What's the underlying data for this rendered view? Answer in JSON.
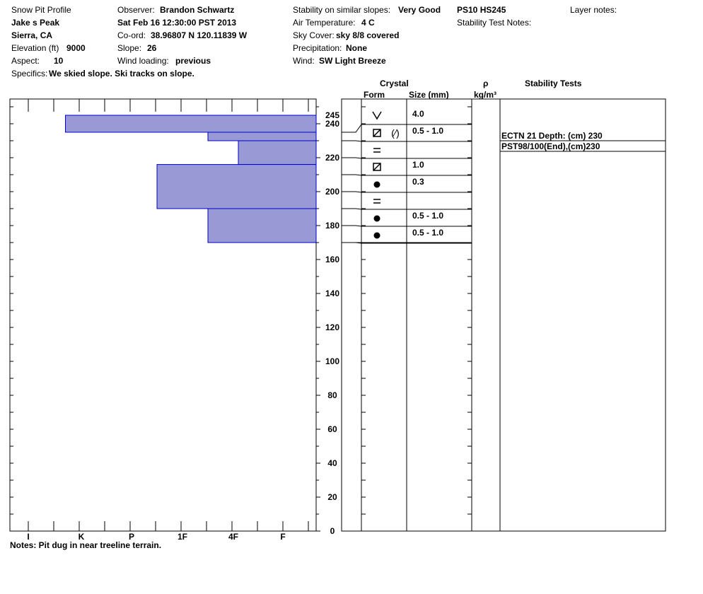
{
  "header": {
    "title": "Snow Pit Profile",
    "location": "Jake s Peak",
    "region": "Sierra, CA",
    "elevation_label": "Elevation (ft)",
    "elevation_value": "9000",
    "aspect_label": "Aspect:",
    "aspect_value": "10",
    "specifics_label": "Specifics:",
    "specifics_value": "We skied slope. Ski tracks on slope.",
    "observer_label": "Observer:",
    "observer_value": "Brandon Schwartz",
    "datetime": "Sat Feb 16 12:30:00 PST 2013",
    "coord_label": "Co-ord:",
    "coord_value": "38.96807 N 120.11839 W",
    "slope_label": "Slope:",
    "slope_value": "26",
    "wind_loading_label": "Wind loading:",
    "wind_loading_value": "previous",
    "stability_label": "Stability on similar slopes:",
    "stability_value": "Very Good",
    "air_temp_label": "Air Temperature:",
    "air_temp_value": "4 C",
    "sky_label": "Sky Cover:",
    "sky_value": "sky 8/8 covered",
    "precip_label": "Precipitation:",
    "precip_value": "None",
    "wind_label": "Wind:",
    "wind_value": "SW Light Breeze",
    "ps_value": "PS10 HS245",
    "stability_test_notes_label": "Stability Test Notes:",
    "layer_notes_label": "Layer notes:"
  },
  "columns": {
    "crystal": "Crystal",
    "form": "Form",
    "size": "Size (mm)",
    "rho": "ρ",
    "density_unit": "kg/m³",
    "stability_tests": "Stability Tests"
  },
  "notes": "Notes:  Pit dug in near treeline terrain.",
  "colors": {
    "layer_fill": "#9999d6",
    "layer_stroke": "#0000cc"
  },
  "chart_data": {
    "type": "bar",
    "orientation": "horizontal",
    "ylim": [
      0,
      255
    ],
    "y_ticks": [
      0,
      20,
      40,
      60,
      80,
      100,
      120,
      140,
      160,
      180,
      200,
      220,
      240
    ],
    "top_tick_label": "245",
    "hardness_ticks": [
      "I",
      "K",
      "P",
      "1F",
      "4F",
      "F"
    ],
    "layers": [
      {
        "top": 245,
        "bottom": 235,
        "hardness": 0.7
      },
      {
        "top": 235,
        "bottom": 230,
        "hardness": 3.5
      },
      {
        "top": 230,
        "bottom": 216,
        "hardness": 4.1
      },
      {
        "top": 216,
        "bottom": 190,
        "hardness": 2.5
      },
      {
        "top": 190,
        "bottom": 170,
        "hardness": 3.5
      }
    ],
    "crystal_rows": [
      {
        "top": 245,
        "bottom": 235,
        "form": "surface-hoar",
        "size": "4.0"
      },
      {
        "top": 235,
        "bottom": 230,
        "form": "faceted-rounded",
        "size": "0.5 - 1.0"
      },
      {
        "top": 230,
        "bottom": 220,
        "form": "ice-layer",
        "size": ""
      },
      {
        "top": 220,
        "bottom": 210,
        "form": "faceted",
        "size": "1.0"
      },
      {
        "top": 210,
        "bottom": 200,
        "form": "rounded",
        "size": "0.3"
      },
      {
        "top": 200,
        "bottom": 190,
        "form": "ice-layer",
        "size": ""
      },
      {
        "top": 190,
        "bottom": 180,
        "form": "rounded",
        "size": "0.5 - 1.0"
      },
      {
        "top": 180,
        "bottom": 170,
        "form": "rounded",
        "size": "0.5 - 1.0"
      }
    ],
    "stability_tests": [
      {
        "label": "ECTN 21   Depth: (cm) 230",
        "depth": 230
      },
      {
        "label": "PST98/100(End),(cm)230",
        "depth": 230
      }
    ]
  }
}
